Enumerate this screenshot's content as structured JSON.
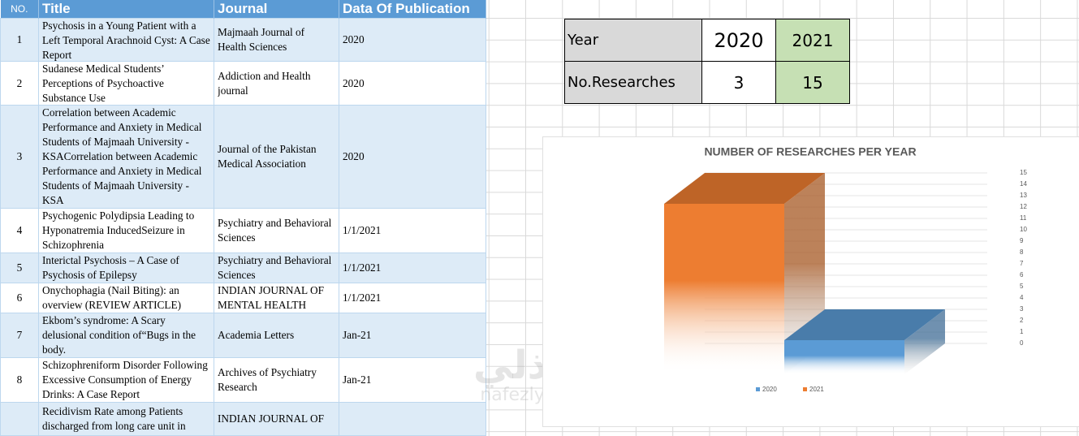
{
  "table": {
    "headers": [
      "NO.",
      "Title",
      "Journal",
      "Data Of Publication"
    ],
    "rows": [
      {
        "no": "1",
        "title": "Psychosis in a Young Patient with a Left Temporal Arachnoid Cyst: A Case Report",
        "journal": "Majmaah Journal of Health Sciences",
        "date": "2020"
      },
      {
        "no": "2",
        "title": "Sudanese Medical Students’ Perceptions of Psychoactive Substance Use",
        "journal": "Addiction and Health journal",
        "date": "2020"
      },
      {
        "no": "3",
        "title": "Correlation between Academic Performance and Anxiety in Medical Students of Majmaah University - KSACorrelation between Academic Performance and Anxiety in Medical Students of Majmaah University - KSA",
        "journal": "Journal of the Pakistan Medical Association",
        "date": "2020"
      },
      {
        "no": "4",
        "title": "Psychogenic Polydipsia Leading to Hyponatremia InducedSeizure in Schizophrenia",
        "journal": "Psychiatry and Behavioral Sciences",
        "date": "1/1/2021"
      },
      {
        "no": "5",
        "title": "Interictal Psychosis – A Case of Psychosis of Epilepsy",
        "journal": "Psychiatry and Behavioral Sciences",
        "date": "1/1/2021"
      },
      {
        "no": "6",
        "title": "Onychophagia (Nail Biting): an overview (REVIEW ARTICLE)",
        "journal": "INDIAN JOURNAL OF MENTAL HEALTH",
        "date": "1/1/2021"
      },
      {
        "no": "7",
        "title": "Ekbom’s syndrome: A Scary delusional condition of“Bugs in the body.",
        "journal": "Academia Letters",
        "date": "Jan-21"
      },
      {
        "no": "8",
        "title": "Schizophreniform Disorder Following Excessive Consumption of Energy Drinks: A Case Report",
        "journal": "Archives of Psychiatry Research",
        "date": "Jan-21"
      },
      {
        "title": "Recidivism Rate among Patients discharged from long care unit in",
        "journal": "INDIAN JOURNAL OF"
      }
    ]
  },
  "summary": {
    "rows": [
      [
        "Year",
        "2020",
        "2021"
      ],
      [
        "No.Researches",
        "3",
        "15"
      ]
    ]
  },
  "watermark": {
    "arabic": "نفذلي",
    "latin": "nafezly.com"
  },
  "chart_data": {
    "type": "bar3d",
    "title": "NUMBER OF RESEARCHES PER YEAR",
    "categories": [
      null
    ],
    "series": [
      {
        "name": "2020",
        "color": "#5b9bd5",
        "values": [
          3
        ]
      },
      {
        "name": "2021",
        "color": "#ed7d31",
        "values": [
          15
        ]
      }
    ],
    "ylim": [
      0,
      15
    ],
    "yticks": [
      0,
      1,
      2,
      3,
      4,
      5,
      6,
      7,
      8,
      9,
      10,
      11,
      12,
      13,
      14,
      15
    ],
    "grid": true
  }
}
